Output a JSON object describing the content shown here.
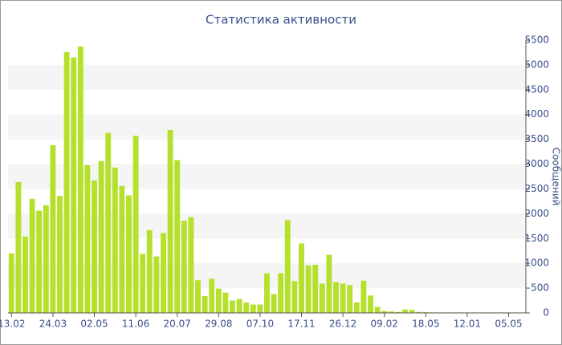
{
  "chart_data": {
    "type": "bar",
    "title": "Статистика активности",
    "y_label": "Сообщений",
    "color": "#b5e02c",
    "grid": "bands",
    "categories": [
      "13.02",
      null,
      null,
      null,
      null,
      null,
      "24.03",
      null,
      null,
      null,
      null,
      null,
      "02.05",
      null,
      null,
      null,
      null,
      null,
      "11.06",
      null,
      null,
      null,
      null,
      null,
      "20.07",
      null,
      null,
      null,
      null,
      null,
      "29.08",
      null,
      null,
      null,
      null,
      null,
      "07.10",
      null,
      null,
      null,
      null,
      null,
      "17.11",
      null,
      null,
      null,
      null,
      null,
      "26.12",
      null,
      null,
      null,
      null,
      null,
      "09.02",
      null,
      null,
      null,
      null,
      null,
      "18.05",
      null,
      null,
      null,
      null,
      null,
      "12.01",
      null,
      null,
      null,
      null,
      null,
      "05.05",
      null,
      null
    ],
    "values": [
      1200,
      2640,
      1540,
      2300,
      2060,
      2170,
      3380,
      2360,
      5260,
      5150,
      5370,
      2980,
      2670,
      3060,
      3630,
      2930,
      2560,
      2370,
      3570,
      1190,
      1670,
      1140,
      1610,
      3690,
      3080,
      1860,
      1930,
      660,
      340,
      690,
      490,
      410,
      250,
      280,
      210,
      170,
      170,
      800,
      380,
      800,
      1870,
      640,
      1400,
      960,
      970,
      590,
      1170,
      620,
      590,
      560,
      210,
      650,
      350,
      120,
      40,
      30,
      20,
      70,
      60,
      20,
      15,
      10,
      10,
      10,
      10,
      10,
      10,
      10,
      10,
      10,
      10,
      10,
      10,
      10,
      10
    ],
    "ylim": [
      0,
      5500
    ],
    "yticks": [
      0,
      500,
      1000,
      1500,
      2000,
      2500,
      3000,
      3500,
      4000,
      4500,
      5000,
      5500
    ]
  }
}
